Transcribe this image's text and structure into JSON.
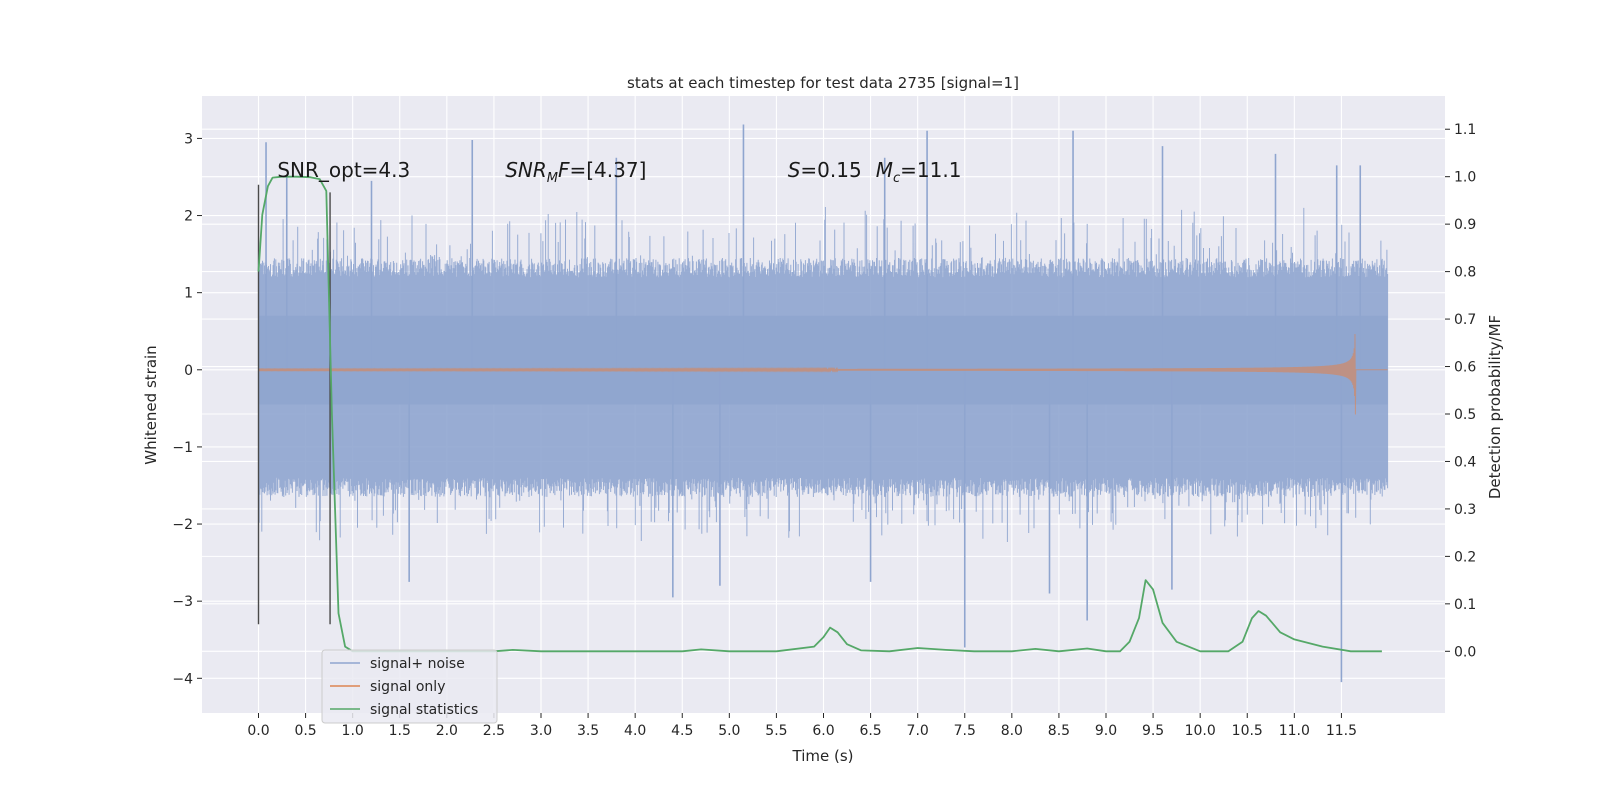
{
  "chart_data": {
    "type": "line",
    "title": "stats at each timestep for test data 2735 [signal=1]",
    "xlabel": "Time (s)",
    "ylabel": "Whitened strain",
    "ylabel_right": "Detection probability/MF",
    "xlim": [
      -0.6,
      12.6
    ],
    "ylim": [
      -4.45,
      3.55
    ],
    "ylim_right": [
      -0.13,
      1.17
    ],
    "x_ticks": [
      0.0,
      0.5,
      1.0,
      1.5,
      2.0,
      2.5,
      3.0,
      3.5,
      4.0,
      4.5,
      5.0,
      5.5,
      6.0,
      6.5,
      7.0,
      7.5,
      8.0,
      8.5,
      9.0,
      9.5,
      10.0,
      10.5,
      11.0,
      11.5
    ],
    "x_tick_labels": [
      "0.0",
      "0.5",
      "1.0",
      "1.5",
      "2.0",
      "2.5",
      "3.0",
      "3.5",
      "4.0",
      "4.5",
      "5.0",
      "5.5",
      "6.0",
      "6.5",
      "7.0",
      "7.5",
      "8.0",
      "8.5",
      "9.0",
      "9.5",
      "10.0",
      "10.5",
      "11.0",
      "11.5"
    ],
    "y_ticks": [
      3,
      2,
      1,
      0,
      -1,
      -2,
      -3,
      -4
    ],
    "y_tick_labels": [
      "3",
      "2",
      "1",
      "0",
      "−1",
      "−2",
      "−3",
      "−4"
    ],
    "y_ticks_right": [
      1.1,
      1.0,
      0.9,
      0.8,
      0.7,
      0.6,
      0.5,
      0.4,
      0.3,
      0.2,
      0.1,
      0.0
    ],
    "y_tick_labels_right": [
      "1.1",
      "1.0",
      "0.9",
      "0.8",
      "0.7",
      "0.6",
      "0.5",
      "0.4",
      "0.3",
      "0.2",
      "0.1",
      "0.0"
    ],
    "grid": true,
    "legend_position": "lower-left",
    "annotations": [
      {
        "text": "SNR_opt=4.3",
        "x": 0.2,
        "y": 2.5
      },
      {
        "text_main": "SNR",
        "text_sub": "M",
        "text_rest": "F=[4.37]",
        "x": 2.62,
        "y": 2.5
      },
      {
        "text_main": "S",
        "text_rest": "=0.15",
        "text_main2": "M",
        "text_sub2": "c",
        "text_rest2": "=11.1",
        "x": 5.62,
        "y": 2.5
      }
    ],
    "vertical_markers": [
      {
        "x": 0.0,
        "y_range": [
          -3.3,
          2.4
        ]
      },
      {
        "x": 0.76,
        "y_range": [
          -3.3,
          2.3
        ]
      }
    ],
    "series": [
      {
        "name": "signal+ noise",
        "color": "#8fa5cf",
        "axis": "left",
        "x_range": [
          0.0,
          11.99
        ],
        "envelope_upper": 1.2,
        "envelope_lower": -1.4,
        "spikes": [
          [
            0.08,
            2.95
          ],
          [
            0.3,
            2.5
          ],
          [
            1.2,
            2.45
          ],
          [
            2.27,
            2.98
          ],
          [
            3.8,
            2.75
          ],
          [
            5.15,
            3.18
          ],
          [
            6.65,
            2.75
          ],
          [
            7.1,
            3.1
          ],
          [
            8.65,
            3.1
          ],
          [
            9.6,
            2.9
          ],
          [
            10.8,
            2.8
          ],
          [
            11.45,
            2.65
          ],
          [
            11.7,
            2.65
          ],
          [
            1.6,
            -2.75
          ],
          [
            4.4,
            -2.95
          ],
          [
            4.9,
            -2.8
          ],
          [
            6.5,
            -2.75
          ],
          [
            7.5,
            -3.6
          ],
          [
            8.4,
            -2.9
          ],
          [
            8.8,
            -3.25
          ],
          [
            9.7,
            -2.85
          ],
          [
            11.5,
            -4.05
          ]
        ]
      },
      {
        "name": "signal only",
        "color": "#dd8452",
        "axis": "left",
        "x_range": [
          0.0,
          11.99
        ],
        "chirp_peak_time": 11.65,
        "chirp_peak_amplitude": 0.58
      },
      {
        "name": "signal statistics",
        "color": "#55a868",
        "axis": "right",
        "x": [
          0.0,
          0.04,
          0.1,
          0.15,
          0.25,
          0.4,
          0.55,
          0.65,
          0.72,
          0.78,
          0.85,
          0.92,
          1.0,
          2.0,
          2.5,
          2.7,
          3.0,
          4.0,
          4.5,
          4.7,
          5.0,
          5.5,
          5.9,
          6.0,
          6.07,
          6.15,
          6.25,
          6.4,
          6.7,
          7.0,
          7.3,
          7.6,
          8.0,
          8.25,
          8.5,
          8.8,
          9.0,
          9.15,
          9.25,
          9.35,
          9.42,
          9.5,
          9.6,
          9.75,
          10.0,
          10.3,
          10.45,
          10.55,
          10.62,
          10.7,
          10.85,
          11.0,
          11.3,
          11.6,
          11.93
        ],
        "values": [
          0.8,
          0.92,
          0.98,
          0.998,
          1.0,
          1.0,
          0.999,
          0.995,
          0.97,
          0.5,
          0.08,
          0.01,
          0.0,
          0.0,
          0.0,
          0.003,
          0.0,
          0.0,
          0.0,
          0.004,
          0.0,
          0.0,
          0.01,
          0.03,
          0.05,
          0.04,
          0.015,
          0.002,
          0.0,
          0.007,
          0.003,
          0.0,
          0.0,
          0.005,
          0.0,
          0.006,
          0.0,
          0.0,
          0.02,
          0.07,
          0.15,
          0.13,
          0.06,
          0.02,
          0.0,
          0.0,
          0.02,
          0.07,
          0.085,
          0.075,
          0.04,
          0.025,
          0.01,
          0.0,
          0.0
        ]
      }
    ],
    "colors": {
      "background": "#eaeaf2",
      "grid": "#ffffff",
      "marker": "#4a4a4a"
    }
  }
}
